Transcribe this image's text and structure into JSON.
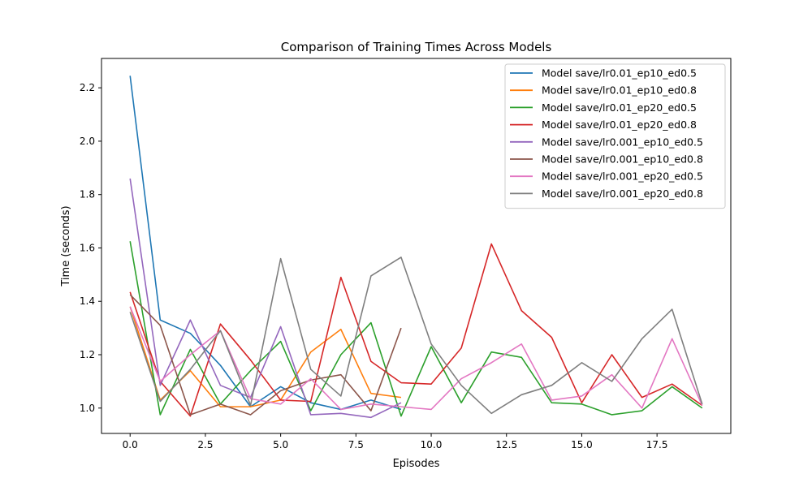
{
  "chart_data": {
    "type": "line",
    "title": "Comparison of Training Times Across Models",
    "xlabel": "Episodes",
    "ylabel": "Time (seconds)",
    "xlim": [
      -0.95,
      19.95
    ],
    "ylim": [
      0.905,
      2.31
    ],
    "x_ticks": [
      0.0,
      2.5,
      5.0,
      7.5,
      10.0,
      12.5,
      15.0,
      17.5
    ],
    "x_tick_labels": [
      "0.0",
      "2.5",
      "5.0",
      "7.5",
      "10.0",
      "12.5",
      "15.0",
      "17.5"
    ],
    "y_ticks": [
      1.0,
      1.2,
      1.4,
      1.6,
      1.8,
      2.0,
      2.2
    ],
    "y_tick_labels": [
      "1.0",
      "1.2",
      "1.4",
      "1.6",
      "1.8",
      "2.0",
      "2.2"
    ],
    "grid": false,
    "legend_position": "top-right",
    "series": [
      {
        "name": "Model save/lr0.01_ep10_ed0.5",
        "color": "#1f77b4",
        "x": [
          0,
          1,
          2,
          3,
          4,
          5,
          6,
          7,
          8,
          9
        ],
        "values": [
          2.245,
          1.33,
          1.28,
          1.16,
          1.005,
          1.08,
          1.02,
          0.995,
          1.03,
          0.995
        ]
      },
      {
        "name": "Model save/lr0.01_ep10_ed0.8",
        "color": "#ff7f0e",
        "x": [
          0,
          1,
          2,
          3,
          4,
          5,
          6,
          7,
          8,
          9
        ],
        "values": [
          1.38,
          1.03,
          1.14,
          1.005,
          1.005,
          1.03,
          1.21,
          1.295,
          1.055,
          1.04
        ]
      },
      {
        "name": "Model save/lr0.01_ep20_ed0.5",
        "color": "#2ca02c",
        "x": [
          0,
          1,
          2,
          3,
          4,
          5,
          6,
          7,
          8,
          9,
          10,
          11,
          12,
          13,
          14,
          15,
          16,
          17,
          18,
          19
        ],
        "values": [
          1.625,
          0.975,
          1.22,
          1.015,
          1.14,
          1.25,
          0.99,
          1.2,
          1.32,
          0.97,
          1.23,
          1.02,
          1.21,
          1.19,
          1.02,
          1.015,
          0.975,
          0.99,
          1.08,
          1.0
        ]
      },
      {
        "name": "Model save/lr0.01_ep20_ed0.8",
        "color": "#d62728",
        "x": [
          0,
          1,
          2,
          3,
          4,
          5,
          6,
          7,
          8,
          9,
          10,
          11,
          12,
          13,
          14,
          15,
          16,
          17,
          18,
          19
        ],
        "values": [
          1.435,
          1.1,
          0.97,
          1.315,
          1.18,
          1.03,
          1.025,
          1.49,
          1.175,
          1.095,
          1.09,
          1.225,
          1.615,
          1.365,
          1.265,
          1.02,
          1.2,
          1.04,
          1.09,
          1.01
        ]
      },
      {
        "name": "Model save/lr0.001_ep10_ed0.5",
        "color": "#9467bd",
        "x": [
          0,
          1,
          2,
          3,
          4,
          5,
          6,
          7,
          8,
          9
        ],
        "values": [
          1.86,
          1.085,
          1.33,
          1.085,
          1.04,
          1.305,
          0.975,
          0.98,
          0.965,
          1.02
        ]
      },
      {
        "name": "Model save/lr0.001_ep10_ed0.8",
        "color": "#8c564b",
        "x": [
          0,
          1,
          2,
          3,
          4,
          5,
          6,
          7,
          8,
          9
        ],
        "values": [
          1.425,
          1.31,
          0.975,
          1.015,
          0.975,
          1.065,
          1.105,
          1.125,
          0.99,
          1.3
        ]
      },
      {
        "name": "Model save/lr0.001_ep20_ed0.5",
        "color": "#e377c2",
        "x": [
          0,
          1,
          2,
          3,
          4,
          5,
          6,
          7,
          8,
          9,
          10,
          11,
          12,
          13,
          14,
          15,
          16,
          17,
          18,
          19
        ],
        "values": [
          1.38,
          1.1,
          1.2,
          1.29,
          1.035,
          1.015,
          1.11,
          0.995,
          1.015,
          1.005,
          0.995,
          1.11,
          1.17,
          1.24,
          1.03,
          1.045,
          1.125,
          1.0,
          1.26,
          1.01
        ]
      },
      {
        "name": "Model save/lr0.001_ep20_ed0.8",
        "color": "#7f7f7f",
        "x": [
          0,
          1,
          2,
          3,
          4,
          5,
          6,
          7,
          8,
          9,
          10,
          11,
          12,
          13,
          14,
          15,
          16,
          17,
          18,
          19
        ],
        "values": [
          1.36,
          1.025,
          1.145,
          1.29,
          1.01,
          1.56,
          1.145,
          1.045,
          1.495,
          1.565,
          1.24,
          1.085,
          0.98,
          1.05,
          1.085,
          1.17,
          1.1,
          1.26,
          1.37,
          1.015
        ]
      }
    ]
  }
}
